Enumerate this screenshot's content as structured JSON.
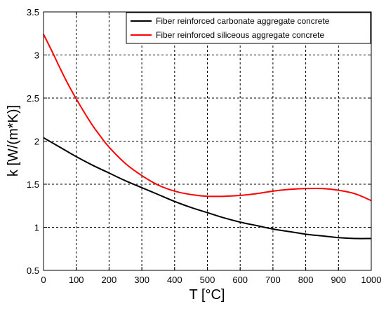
{
  "chart_data": {
    "type": "line",
    "title": "",
    "xlabel": "T [°C]",
    "ylabel": "k [W/(m*K)]",
    "xlim": [
      0,
      1000
    ],
    "ylim": [
      0.5,
      3.5
    ],
    "xticks": [
      0,
      100,
      200,
      300,
      400,
      500,
      600,
      700,
      800,
      900,
      1000
    ],
    "yticks": [
      0.5,
      1,
      1.5,
      2,
      2.5,
      3,
      3.5
    ],
    "xtick_labels": [
      "0",
      "100",
      "200",
      "300",
      "400",
      "500",
      "600",
      "700",
      "800",
      "900",
      "1000"
    ],
    "ytick_labels": [
      "0.5",
      "1",
      "1.5",
      "2",
      "2.5",
      "3",
      "3.5"
    ],
    "grid": true,
    "legend_position": "top-right",
    "series": [
      {
        "name": "Fiber reinforced carbonate aggregate concrete",
        "color": "#000000",
        "x": [
          0,
          50,
          100,
          150,
          200,
          250,
          300,
          350,
          400,
          450,
          500,
          550,
          600,
          650,
          700,
          750,
          800,
          850,
          900,
          950,
          1000
        ],
        "y": [
          2.04,
          1.93,
          1.82,
          1.72,
          1.63,
          1.54,
          1.46,
          1.38,
          1.3,
          1.23,
          1.17,
          1.11,
          1.06,
          1.02,
          0.98,
          0.95,
          0.92,
          0.9,
          0.88,
          0.87,
          0.87
        ]
      },
      {
        "name": "Fiber reinforced siliceous aggregate concrete",
        "color": "#ff0000",
        "x": [
          0,
          25,
          50,
          75,
          100,
          125,
          150,
          175,
          200,
          250,
          300,
          350,
          400,
          450,
          500,
          550,
          600,
          650,
          700,
          750,
          800,
          850,
          900,
          950,
          1000
        ],
        "y": [
          3.24,
          3.05,
          2.85,
          2.66,
          2.49,
          2.33,
          2.18,
          2.05,
          1.93,
          1.74,
          1.6,
          1.49,
          1.42,
          1.38,
          1.36,
          1.36,
          1.37,
          1.39,
          1.42,
          1.44,
          1.45,
          1.45,
          1.43,
          1.39,
          1.31
        ]
      }
    ]
  }
}
